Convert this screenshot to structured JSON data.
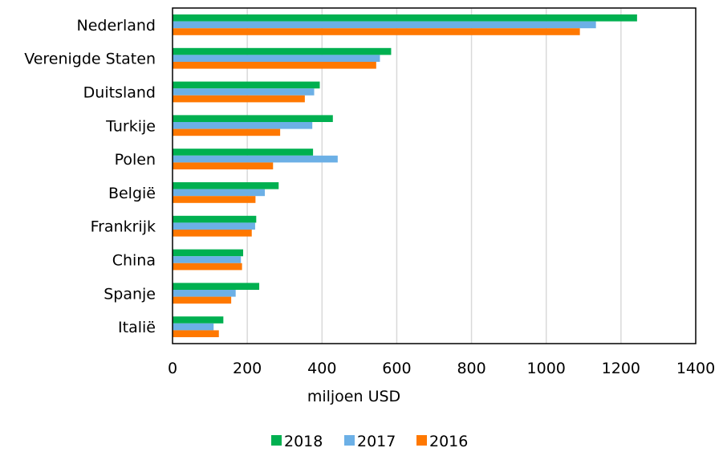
{
  "chart_data": {
    "type": "bar",
    "orientation": "horizontal",
    "categories": [
      "Nederland",
      "Verenigde Staten",
      "Duitsland",
      "Turkije",
      "Polen",
      "België",
      "Frankrijk",
      "China",
      "Spanje",
      "Italië"
    ],
    "series": [
      {
        "name": "2018",
        "color": "#00b050",
        "values": [
          1243,
          585,
          394,
          429,
          376,
          284,
          224,
          189,
          232,
          136
        ]
      },
      {
        "name": "2017",
        "color": "#6cb0e6",
        "values": [
          1133,
          555,
          379,
          374,
          442,
          247,
          221,
          183,
          169,
          110
        ]
      },
      {
        "name": "2016",
        "color": "#ff7800",
        "values": [
          1090,
          545,
          354,
          288,
          269,
          222,
          212,
          186,
          157,
          124
        ]
      }
    ],
    "title": "",
    "xlabel": "miljoen USD",
    "ylabel": "",
    "xlim": [
      0,
      1400
    ],
    "xticks": [
      "0",
      "200",
      "400",
      "600",
      "800",
      "1000",
      "1200",
      "1400"
    ],
    "grid": "vertical",
    "legend_position": "bottom"
  }
}
